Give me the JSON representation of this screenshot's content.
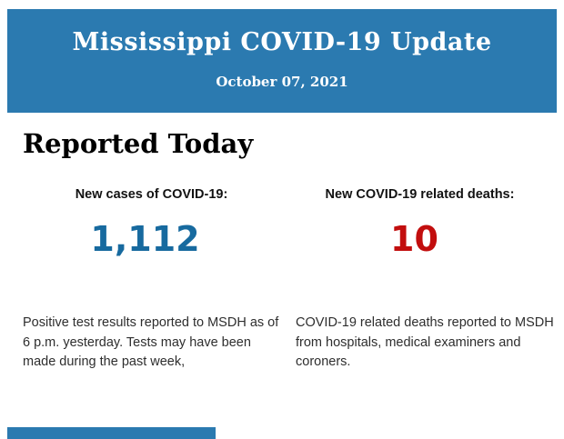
{
  "header": {
    "title": "Mississippi COVID-19 Update",
    "date": "October 07, 2021",
    "bg_color": "#2b7ab0",
    "text_color": "#ffffff"
  },
  "section": {
    "title": "Reported Today"
  },
  "stats": [
    {
      "label": "New cases of COVID-19:",
      "value": "1,112",
      "value_color": "#176a9f",
      "description": "Positive test results reported to MSDH as of 6 p.m. yesterday. Tests may have been made during the past week,"
    },
    {
      "label": "New COVID-19 related deaths:",
      "value": "10",
      "value_color": "#c20e0e",
      "description": "COVID-19 related deaths reported to MSDH from hospitals, medical examiners and coroners."
    }
  ],
  "footer": {
    "next_section_bar_color": "#2b7ab0"
  }
}
